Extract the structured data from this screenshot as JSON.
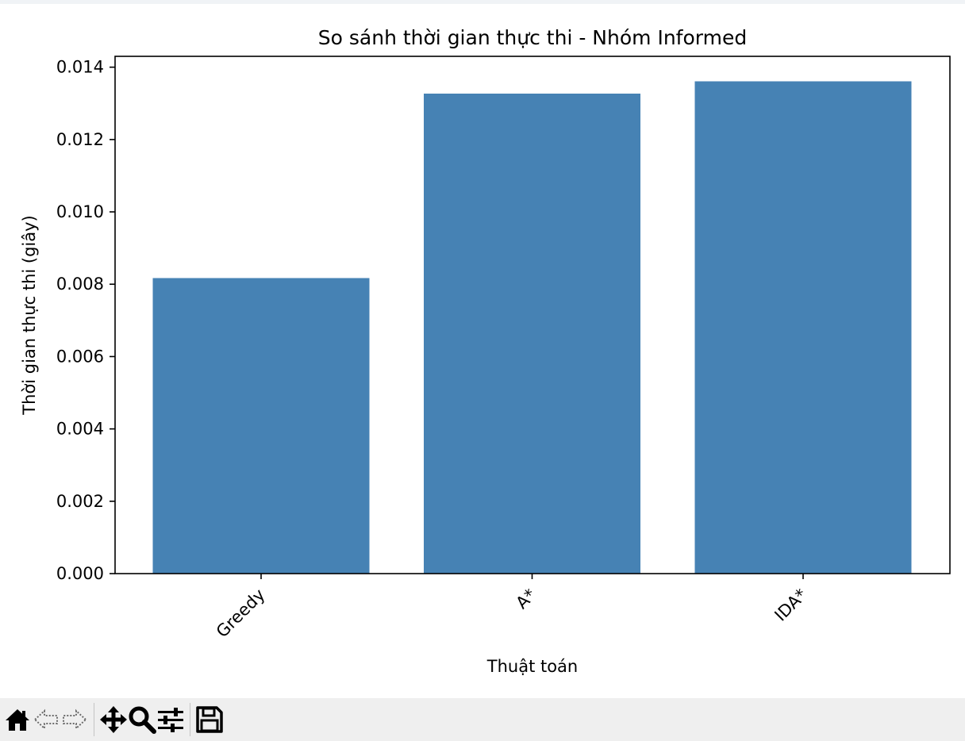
{
  "chart_data": {
    "type": "bar",
    "title": "So sánh thời gian thực thi - Nhóm Informed",
    "xlabel": "Thuật toán",
    "ylabel": "Thời gian thực thi (giây)",
    "categories": [
      "Greedy",
      "A*",
      "IDA*"
    ],
    "values": [
      0.00817,
      0.01327,
      0.01361
    ],
    "ylim": [
      0,
      0.0143
    ],
    "yticks": [
      "0.000",
      "0.002",
      "0.004",
      "0.006",
      "0.008",
      "0.010",
      "0.012",
      "0.014"
    ],
    "bar_color": "#4682b4",
    "grid": false,
    "x_tick_rotation_deg": 45
  },
  "toolbar": {
    "buttons": [
      {
        "name": "home-button",
        "icon": "home-icon",
        "enabled": true
      },
      {
        "name": "back-button",
        "icon": "back-arrow-icon",
        "enabled": false
      },
      {
        "name": "forward-button",
        "icon": "forward-arrow-icon",
        "enabled": false
      },
      {
        "name": "pan-button",
        "icon": "move-icon",
        "enabled": true
      },
      {
        "name": "zoom-button",
        "icon": "magnifier-icon",
        "enabled": true
      },
      {
        "name": "configure-subplots-button",
        "icon": "sliders-icon",
        "enabled": true
      },
      {
        "name": "save-button",
        "icon": "floppy-disk-icon",
        "enabled": true
      }
    ]
  }
}
